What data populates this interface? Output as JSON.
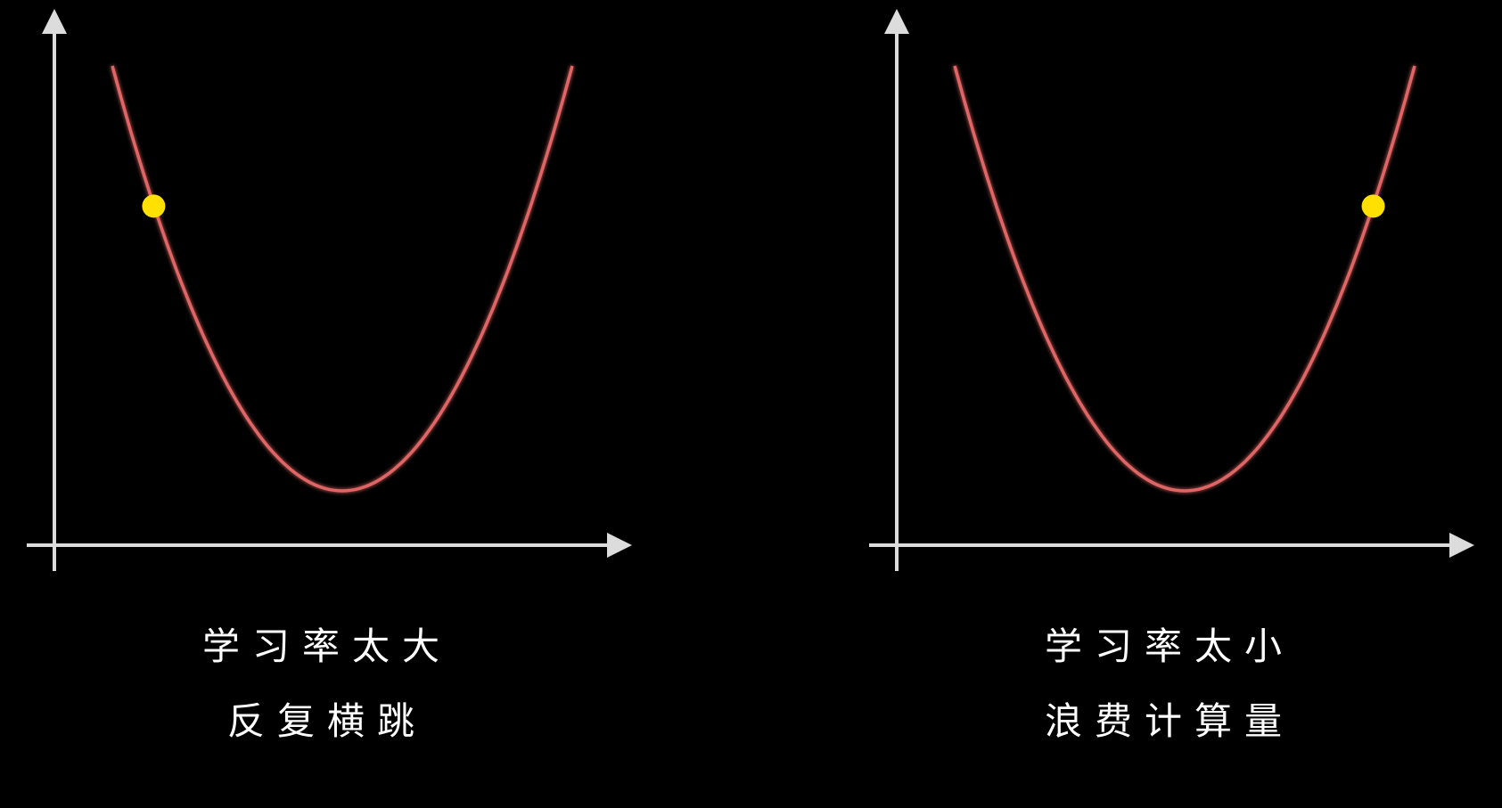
{
  "colors": {
    "background": "#000000",
    "axis": "#dcdcdc",
    "curve": "#e06666",
    "point": "#ffe000",
    "text": "#ffffff"
  },
  "chart_data": [
    {
      "type": "line",
      "curve": "parabola y = x^2",
      "xlim": [
        -1,
        1
      ],
      "point": {
        "x": -0.82,
        "y": 0.67
      },
      "caption": {
        "line1": "学习率太大",
        "line2": "反复横跳"
      }
    },
    {
      "type": "line",
      "curve": "parabola y = x^2",
      "xlim": [
        -1,
        1
      ],
      "point": {
        "x": 0.82,
        "y": 0.67
      },
      "caption": {
        "line1": "学习率太小",
        "line2": "浪费计算量"
      }
    }
  ]
}
